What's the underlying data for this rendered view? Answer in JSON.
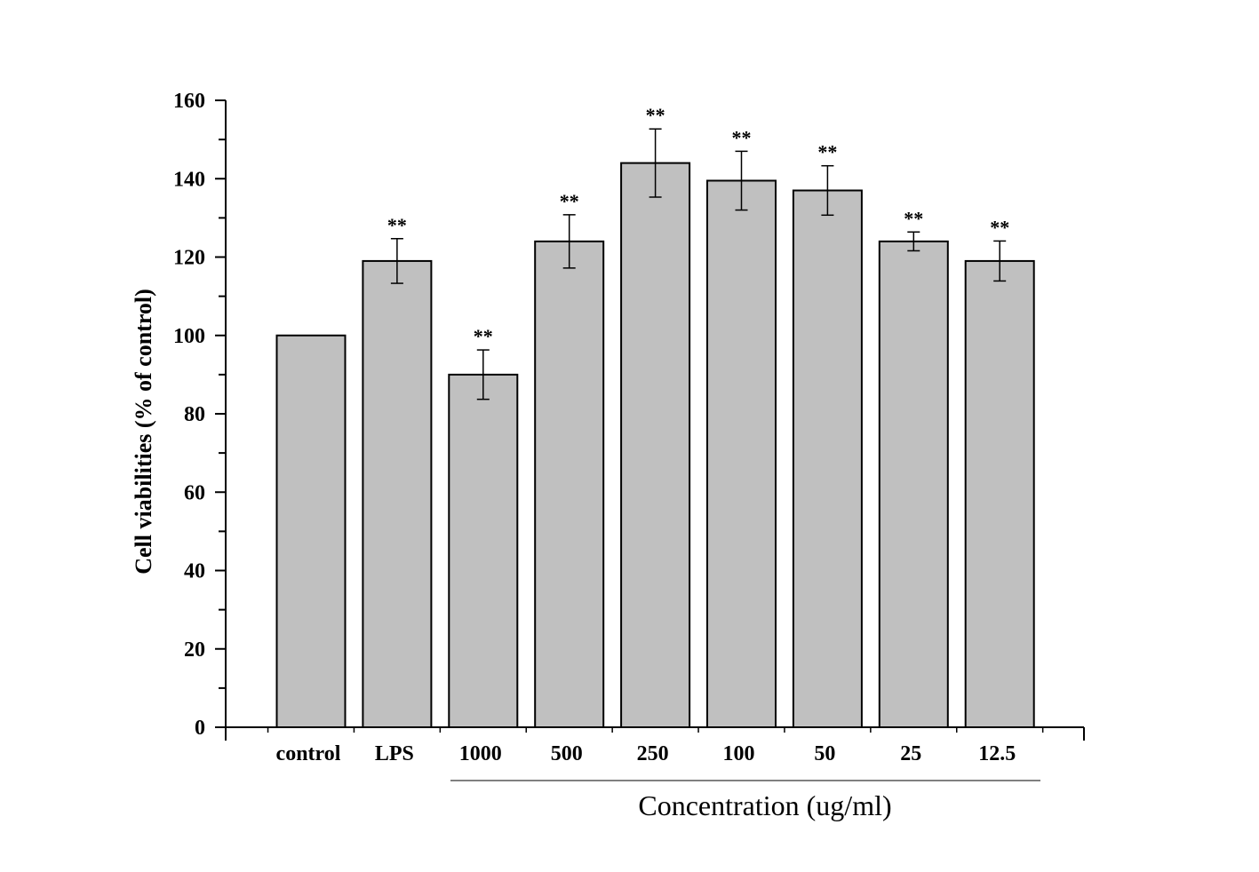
{
  "chart_data": {
    "type": "bar",
    "title": "",
    "ylabel": "Cell viabilities (% of control)",
    "xlabel": "Concentration (ug/ml)",
    "ylim": [
      0,
      160
    ],
    "yticks": [
      "0",
      "20",
      "40",
      "60",
      "80",
      "100",
      "120",
      "140",
      "160"
    ],
    "categories": [
      "control",
      "LPS",
      "1000",
      "500",
      "250",
      "100",
      "50",
      "25",
      "12.5"
    ],
    "values": [
      100,
      119,
      90,
      124,
      144,
      139.5,
      137,
      124,
      119
    ],
    "errors": [
      0,
      5.7,
      6.3,
      6.8,
      8.7,
      7.5,
      6.3,
      2.4,
      5.1
    ],
    "annotations": [
      "",
      "**",
      "**",
      "**",
      "**",
      "**",
      "**",
      "**",
      "**"
    ],
    "bar_color": "#c0c0c0",
    "grid": false,
    "legend": "none"
  }
}
